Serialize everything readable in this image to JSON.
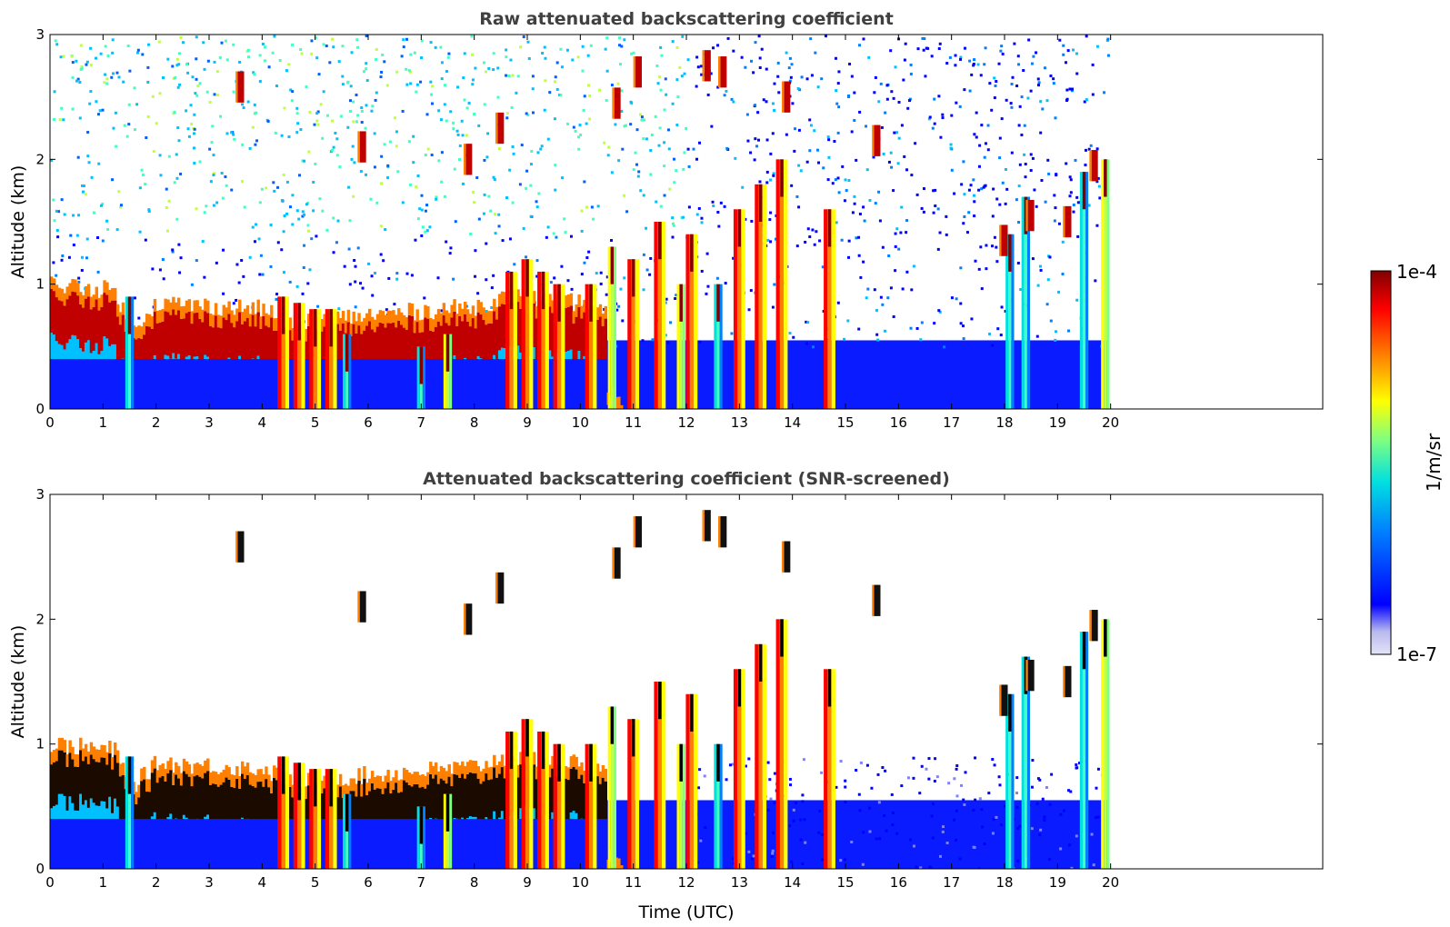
{
  "chart_data": [
    {
      "type": "heatmap",
      "title": "Raw attenuated backscattering coefficient",
      "xlabel": "",
      "ylabel": "Altitude (km)",
      "xlim": [
        0,
        24
      ],
      "ylim": [
        0,
        3
      ],
      "data_x_end": 19.95,
      "xticks": [
        0,
        1,
        2,
        3,
        4,
        5,
        6,
        7,
        8,
        9,
        10,
        11,
        12,
        13,
        14,
        15,
        16,
        17,
        18,
        19,
        20
      ],
      "yticks": [
        0,
        1,
        2,
        3
      ],
      "grid": false,
      "screened": false,
      "features": {
        "boundary_layer": {
          "x": [
            0,
            1.2,
            1.5,
            2.0,
            4.0,
            4.5,
            8.0,
            8.6,
            10.0,
            10.5
          ],
          "top_km": [
            0.9,
            0.85,
            0.55,
            0.75,
            0.7,
            0.6,
            0.72,
            0.8,
            0.75,
            0.65
          ]
        },
        "columns": [
          {
            "x": 1.5,
            "top_km": 0.9,
            "kind": "cyan"
          },
          {
            "x": 4.4,
            "top_km": 0.9,
            "kind": "red"
          },
          {
            "x": 4.7,
            "top_km": 0.85,
            "kind": "red"
          },
          {
            "x": 5.0,
            "top_km": 0.8,
            "kind": "red"
          },
          {
            "x": 5.3,
            "top_km": 0.8,
            "kind": "red"
          },
          {
            "x": 5.6,
            "top_km": 0.6,
            "kind": "cyan"
          },
          {
            "x": 7.0,
            "top_km": 0.5,
            "kind": "cyan"
          },
          {
            "x": 7.5,
            "top_km": 0.6,
            "kind": "yellow"
          },
          {
            "x": 8.7,
            "top_km": 1.1,
            "kind": "red"
          },
          {
            "x": 9.0,
            "top_km": 1.2,
            "kind": "red"
          },
          {
            "x": 9.3,
            "top_km": 1.1,
            "kind": "red"
          },
          {
            "x": 9.6,
            "top_km": 1.0,
            "kind": "red"
          },
          {
            "x": 10.2,
            "top_km": 1.0,
            "kind": "red"
          },
          {
            "x": 10.6,
            "top_km": 1.3,
            "kind": "yellow"
          },
          {
            "x": 11.0,
            "top_km": 1.2,
            "kind": "red"
          },
          {
            "x": 11.5,
            "top_km": 1.5,
            "kind": "red"
          },
          {
            "x": 11.9,
            "top_km": 1.0,
            "kind": "yellow"
          },
          {
            "x": 12.1,
            "top_km": 1.4,
            "kind": "red"
          },
          {
            "x": 12.6,
            "top_km": 1.0,
            "kind": "cyan"
          },
          {
            "x": 13.0,
            "top_km": 1.6,
            "kind": "red"
          },
          {
            "x": 13.4,
            "top_km": 1.8,
            "kind": "red"
          },
          {
            "x": 13.8,
            "top_km": 2.0,
            "kind": "red"
          },
          {
            "x": 14.7,
            "top_km": 1.6,
            "kind": "red"
          },
          {
            "x": 18.1,
            "top_km": 1.4,
            "kind": "cyan"
          },
          {
            "x": 18.4,
            "top_km": 1.7,
            "kind": "cyan"
          },
          {
            "x": 19.5,
            "top_km": 1.9,
            "kind": "cyan"
          },
          {
            "x": 19.9,
            "top_km": 2.0,
            "kind": "yellow"
          }
        ],
        "clouds": [
          {
            "x": 3.6,
            "y_km": 2.58
          },
          {
            "x": 5.9,
            "y_km": 2.1
          },
          {
            "x": 7.9,
            "y_km": 2.0
          },
          {
            "x": 8.5,
            "y_km": 2.25
          },
          {
            "x": 10.7,
            "y_km": 2.45
          },
          {
            "x": 11.1,
            "y_km": 2.7
          },
          {
            "x": 12.4,
            "y_km": 2.75
          },
          {
            "x": 12.7,
            "y_km": 2.7
          },
          {
            "x": 13.9,
            "y_km": 2.5
          },
          {
            "x": 15.6,
            "y_km": 2.15
          },
          {
            "x": 18.0,
            "y_km": 1.35
          },
          {
            "x": 18.5,
            "y_km": 1.55
          },
          {
            "x": 19.2,
            "y_km": 1.5
          },
          {
            "x": 19.7,
            "y_km": 1.95
          }
        ]
      }
    },
    {
      "type": "heatmap",
      "title": "Attenuated backscattering coefficient (SNR-screened)",
      "xlabel": "Time (UTC)",
      "ylabel": "Altitude (km)",
      "xlim": [
        0,
        24
      ],
      "ylim": [
        0,
        3
      ],
      "data_x_end": 19.95,
      "xticks": [
        0,
        1,
        2,
        3,
        4,
        5,
        6,
        7,
        8,
        9,
        10,
        11,
        12,
        13,
        14,
        15,
        16,
        17,
        18,
        19,
        20
      ],
      "yticks": [
        0,
        1,
        2,
        3
      ],
      "grid": false,
      "screened": true
    }
  ],
  "colorbar": {
    "label": "1/m/sr",
    "max_label": "1e-4",
    "min_label": "1e-7",
    "colormap": "jet",
    "colors": [
      "#e4e4f7",
      "#b8b8ef",
      "#0000ff",
      "#0080ff",
      "#00e0e0",
      "#80ff80",
      "#ffff00",
      "#ff8000",
      "#ff0000",
      "#800000"
    ]
  }
}
